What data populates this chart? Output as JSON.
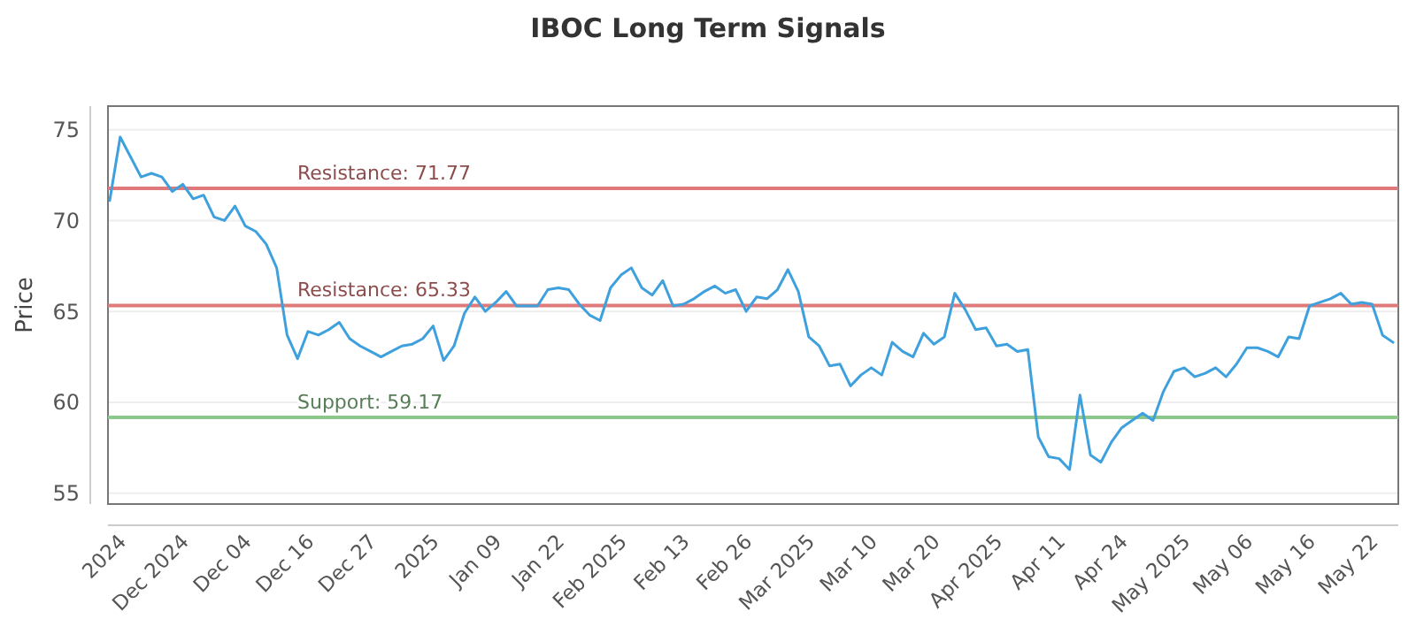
{
  "chart_data": {
    "type": "line",
    "title": "IBOC Long Term Signals",
    "ylabel": "Price",
    "categories": [
      null,
      "2024",
      null,
      null,
      null,
      null,
      null,
      "Dec 2024",
      null,
      null,
      null,
      null,
      null,
      "Dec 04",
      null,
      null,
      null,
      null,
      null,
      "Dec 16",
      null,
      null,
      null,
      null,
      null,
      "Dec 27",
      null,
      null,
      null,
      null,
      null,
      "2025",
      null,
      null,
      null,
      null,
      null,
      "Jan 09",
      null,
      null,
      null,
      null,
      null,
      "Jan 22",
      null,
      null,
      null,
      null,
      null,
      "Feb 2025",
      null,
      null,
      null,
      null,
      null,
      "Feb 13",
      null,
      null,
      null,
      null,
      null,
      "Feb 26",
      null,
      null,
      null,
      null,
      null,
      "Mar 2025",
      null,
      null,
      null,
      null,
      null,
      "Mar 10",
      null,
      null,
      null,
      null,
      null,
      "Mar 20",
      null,
      null,
      null,
      null,
      null,
      "Apr 2025",
      null,
      null,
      null,
      null,
      null,
      "Apr 11",
      null,
      null,
      null,
      null,
      null,
      "Apr 24",
      null,
      null,
      null,
      null,
      null,
      "May 2025",
      null,
      null,
      null,
      null,
      null,
      "May 06",
      null,
      null,
      null,
      null,
      null,
      "May 16",
      null,
      null,
      null,
      null,
      null,
      "May 22",
      null,
      null
    ],
    "series": [
      {
        "color": "#3ea0dc",
        "values": [
          71.1,
          74.6,
          73.5,
          72.4,
          72.6,
          72.4,
          71.6,
          72.0,
          71.2,
          71.4,
          70.2,
          70.0,
          70.8,
          69.7,
          69.4,
          68.7,
          67.4,
          63.7,
          62.4,
          63.9,
          63.7,
          64.0,
          64.4,
          63.5,
          63.1,
          62.8,
          62.5,
          62.8,
          63.1,
          63.2,
          63.5,
          64.2,
          62.3,
          63.1,
          64.9,
          65.8,
          65.0,
          65.5,
          66.1,
          65.3,
          65.3,
          65.3,
          66.2,
          66.3,
          66.2,
          65.4,
          64.8,
          64.5,
          66.3,
          67.0,
          67.4,
          66.3,
          65.9,
          66.7,
          65.3,
          65.4,
          65.7,
          66.1,
          66.4,
          66.0,
          66.2,
          65.0,
          65.8,
          65.7,
          66.2,
          67.3,
          66.1,
          63.6,
          63.1,
          62.0,
          62.1,
          60.9,
          61.5,
          61.9,
          61.5,
          63.3,
          62.8,
          62.5,
          63.8,
          63.2,
          63.6,
          66.0,
          65.1,
          64.0,
          64.1,
          63.1,
          63.2,
          62.8,
          62.9,
          58.1,
          57.0,
          56.9,
          56.3,
          60.4,
          57.1,
          56.7,
          57.8,
          58.6,
          59.0,
          59.4,
          59.0,
          60.6,
          61.7,
          61.9,
          61.4,
          61.6,
          61.9,
          61.4,
          62.1,
          63.0,
          63.0,
          62.8,
          62.5,
          63.6,
          63.5,
          65.3,
          65.5,
          65.7,
          66.0,
          65.4,
          65.5,
          65.4,
          63.7,
          63.3
        ]
      }
    ],
    "ylim": [
      54.4,
      76.3
    ],
    "yticks": [
      55,
      60,
      65,
      70,
      75
    ],
    "grid": "y",
    "marker": "none",
    "line_style": "solid",
    "ref_lines": [
      {
        "axis": "y",
        "value": 71.77,
        "label": "Resistance: 71.77",
        "color": "#e07a7a"
      },
      {
        "axis": "y",
        "value": 65.33,
        "label": "Resistance: 65.33",
        "color": "#e07a7a"
      },
      {
        "axis": "y",
        "value": 59.17,
        "label": "Support: 59.17",
        "color": "#8cc88c"
      }
    ]
  }
}
